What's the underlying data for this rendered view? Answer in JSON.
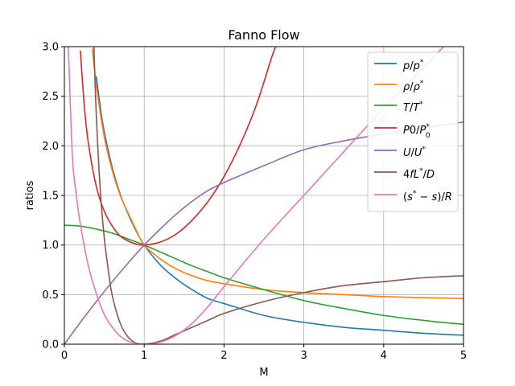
{
  "chart_data": {
    "type": "line",
    "title": "Fanno Flow",
    "xlabel": "M",
    "ylabel": "ratios",
    "xlim": [
      0,
      5
    ],
    "ylim": [
      0,
      3
    ],
    "grid": true,
    "legend_position": "top-right",
    "x_ticks": [
      "0",
      "1",
      "2",
      "3",
      "4",
      "5"
    ],
    "y_ticks": [
      "0.0",
      "0.5",
      "1.0",
      "1.5",
      "2.0",
      "2.5",
      "3.0"
    ],
    "series": [
      {
        "name": "p/p*",
        "color": "#1f77b4",
        "x": [
          0.4,
          0.45,
          0.5,
          0.6,
          0.7,
          0.8,
          0.9,
          1.0,
          1.2,
          1.4,
          1.6,
          1.8,
          2.0,
          2.5,
          3.0,
          3.5,
          4.0,
          4.5,
          5.0
        ],
        "y": [
          2.7,
          2.39,
          2.14,
          1.78,
          1.51,
          1.31,
          1.14,
          1.0,
          0.8,
          0.66,
          0.55,
          0.46,
          0.41,
          0.29,
          0.22,
          0.17,
          0.14,
          0.11,
          0.09
        ]
      },
      {
        "name": "ρ/ρ*",
        "color": "#ff7f0e",
        "x": [
          0.35,
          0.4,
          0.5,
          0.6,
          0.7,
          0.8,
          0.9,
          1.0,
          1.2,
          1.4,
          1.6,
          1.8,
          2.0,
          2.5,
          3.0,
          3.5,
          4.0,
          4.5,
          5.0
        ],
        "y": [
          2.98,
          2.61,
          2.09,
          1.75,
          1.5,
          1.32,
          1.15,
          1.0,
          0.86,
          0.76,
          0.69,
          0.64,
          0.61,
          0.55,
          0.52,
          0.5,
          0.48,
          0.47,
          0.46
        ]
      },
      {
        "name": "T/T*",
        "color": "#2ca02c",
        "x": [
          0.0,
          0.2,
          0.4,
          0.6,
          0.8,
          1.0,
          1.2,
          1.4,
          1.6,
          1.8,
          2.0,
          2.5,
          3.0,
          3.5,
          4.0,
          4.5,
          5.0
        ],
        "y": [
          1.2,
          1.19,
          1.16,
          1.12,
          1.06,
          1.0,
          0.93,
          0.86,
          0.79,
          0.73,
          0.67,
          0.55,
          0.44,
          0.36,
          0.29,
          0.24,
          0.2
        ]
      },
      {
        "name": "P0/P0*",
        "color": "#d62728",
        "x": [
          0.2,
          0.25,
          0.3,
          0.4,
          0.5,
          0.6,
          0.7,
          0.8,
          0.9,
          1.0,
          1.2,
          1.4,
          1.6,
          1.8,
          2.0,
          2.2,
          2.4,
          2.6,
          2.65
        ],
        "y": [
          2.96,
          2.4,
          2.03,
          1.59,
          1.34,
          1.19,
          1.09,
          1.04,
          1.01,
          1.0,
          1.03,
          1.11,
          1.25,
          1.44,
          1.69,
          2.01,
          2.4,
          2.9,
          3.0
        ]
      },
      {
        "name": "U/U*",
        "color": "#9467bd",
        "x": [
          0.0,
          0.2,
          0.4,
          0.6,
          0.8,
          1.0,
          1.2,
          1.4,
          1.6,
          1.8,
          2.0,
          2.5,
          3.0,
          3.5,
          4.0,
          4.5,
          5.0
        ],
        "y": [
          0.0,
          0.22,
          0.43,
          0.63,
          0.82,
          1.0,
          1.16,
          1.31,
          1.44,
          1.55,
          1.63,
          1.8,
          1.96,
          2.05,
          2.12,
          2.18,
          2.24
        ]
      },
      {
        "name": "4fL*/D",
        "color": "#8c564b",
        "x": [
          0.37,
          0.4,
          0.45,
          0.5,
          0.55,
          0.6,
          0.7,
          0.8,
          0.9,
          1.0,
          1.2,
          1.4,
          1.6,
          1.8,
          2.0,
          2.5,
          3.0,
          3.5,
          4.0,
          4.5,
          5.0
        ],
        "y": [
          3.0,
          2.31,
          1.55,
          1.07,
          0.75,
          0.49,
          0.21,
          0.07,
          0.01,
          0.0,
          0.03,
          0.1,
          0.17,
          0.24,
          0.31,
          0.43,
          0.52,
          0.59,
          0.63,
          0.67,
          0.69
        ]
      },
      {
        "name": "(s*−s)/R",
        "color": "#e377c2",
        "x": [
          0.05,
          0.1,
          0.15,
          0.2,
          0.3,
          0.4,
          0.5,
          0.6,
          0.7,
          0.8,
          0.9,
          1.0,
          1.2,
          1.4,
          1.6,
          1.8,
          2.0,
          2.5,
          3.0,
          3.5,
          4.0,
          4.5,
          4.75
        ],
        "y": [
          3.0,
          1.9,
          1.5,
          1.21,
          0.79,
          0.51,
          0.3,
          0.17,
          0.08,
          0.03,
          0.01,
          0.0,
          0.02,
          0.09,
          0.21,
          0.38,
          0.58,
          1.06,
          1.5,
          1.94,
          2.38,
          2.79,
          3.0
        ]
      }
    ]
  }
}
